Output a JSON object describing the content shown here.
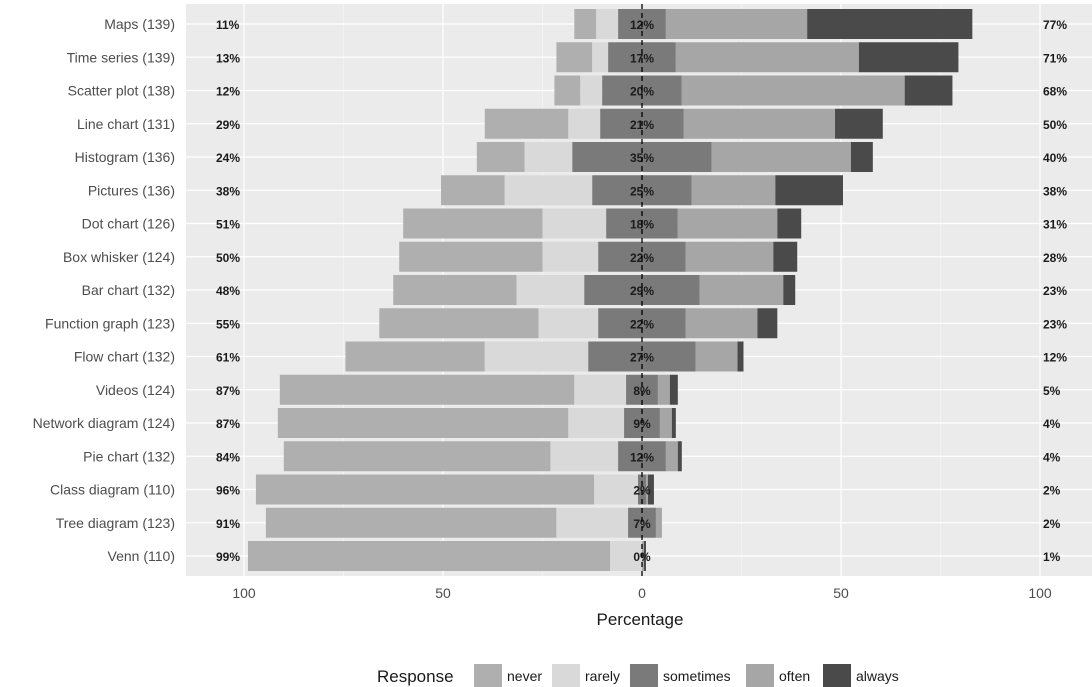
{
  "chart_data": {
    "type": "bar",
    "subtype": "diverging-stacked-likert",
    "xlabel": "Percentage",
    "xlim": [
      -100,
      100
    ],
    "x_ticks": [
      {
        "value": -100,
        "label": "100"
      },
      {
        "value": -50,
        "label": "50"
      },
      {
        "value": 0,
        "label": "0"
      },
      {
        "value": 50,
        "label": "50"
      },
      {
        "value": 100,
        "label": "100"
      }
    ],
    "grid": true,
    "legend": {
      "title": "Response",
      "position": "bottom",
      "items": [
        {
          "label": "never",
          "color": "#afafaf"
        },
        {
          "label": "rarely",
          "color": "#d9d9d9"
        },
        {
          "label": "sometimes",
          "color": "#7a7a7a"
        },
        {
          "label": "often",
          "color": "#a6a6a6"
        },
        {
          "label": "always",
          "color": "#4a4a4a"
        }
      ]
    },
    "categories": [
      {
        "label": "Maps (139)",
        "left_pct": "11%",
        "mid_pct": "12%",
        "right_pct": "77%"
      },
      {
        "label": "Time series (139)",
        "left_pct": "13%",
        "mid_pct": "17%",
        "right_pct": "71%"
      },
      {
        "label": "Scatter plot (138)",
        "left_pct": "12%",
        "mid_pct": "20%",
        "right_pct": "68%"
      },
      {
        "label": "Line chart (131)",
        "left_pct": "29%",
        "mid_pct": "21%",
        "right_pct": "50%"
      },
      {
        "label": "Histogram (136)",
        "left_pct": "24%",
        "mid_pct": "35%",
        "right_pct": "40%"
      },
      {
        "label": "Pictures (136)",
        "left_pct": "38%",
        "mid_pct": "25%",
        "right_pct": "38%"
      },
      {
        "label": "Dot chart (126)",
        "left_pct": "51%",
        "mid_pct": "18%",
        "right_pct": "31%"
      },
      {
        "label": "Box whisker (124)",
        "left_pct": "50%",
        "mid_pct": "22%",
        "right_pct": "28%"
      },
      {
        "label": "Bar chart (132)",
        "left_pct": "48%",
        "mid_pct": "29%",
        "right_pct": "23%"
      },
      {
        "label": "Function graph (123)",
        "left_pct": "55%",
        "mid_pct": "22%",
        "right_pct": "23%"
      },
      {
        "label": "Flow chart (132)",
        "left_pct": "61%",
        "mid_pct": "27%",
        "right_pct": "12%"
      },
      {
        "label": "Videos (124)",
        "left_pct": "87%",
        "mid_pct": "8%",
        "right_pct": "5%"
      },
      {
        "label": "Network diagram (124)",
        "left_pct": "87%",
        "mid_pct": "9%",
        "right_pct": "4%"
      },
      {
        "label": "Pie chart (132)",
        "left_pct": "84%",
        "mid_pct": "12%",
        "right_pct": "4%"
      },
      {
        "label": "Class diagram (110)",
        "left_pct": "96%",
        "mid_pct": "2%",
        "right_pct": "2%"
      },
      {
        "label": "Tree diagram (123)",
        "left_pct": "91%",
        "mid_pct": "7%",
        "right_pct": "2%"
      },
      {
        "label": "Venn (110)",
        "left_pct": "99%",
        "mid_pct": "0%",
        "right_pct": "1%"
      }
    ],
    "series": [
      {
        "name": "never",
        "values": [
          5.5,
          9,
          6.5,
          21,
          12,
          16,
          35,
          36,
          31,
          40,
          35,
          74,
          73,
          67,
          85,
          73,
          91
        ]
      },
      {
        "name": "rarely",
        "values": [
          5.5,
          4,
          5.5,
          8,
          12,
          22,
          16,
          14,
          17,
          15,
          26,
          13,
          14,
          17,
          11,
          18,
          8
        ]
      },
      {
        "name": "sometimes",
        "values": [
          12,
          17,
          20,
          21,
          35,
          25,
          18,
          22,
          29,
          22,
          27,
          8,
          9,
          12,
          2,
          7,
          0
        ]
      },
      {
        "name": "often",
        "values": [
          35.5,
          46,
          56,
          38,
          35,
          21,
          25,
          22,
          21,
          18,
          10.5,
          3,
          3,
          3,
          0.5,
          1.5,
          0.5
        ]
      },
      {
        "name": "always",
        "values": [
          41.5,
          25,
          12,
          12,
          5.5,
          17,
          6,
          6,
          3,
          5,
          1.5,
          2,
          1,
          1,
          1.5,
          0,
          0.5
        ]
      }
    ]
  }
}
